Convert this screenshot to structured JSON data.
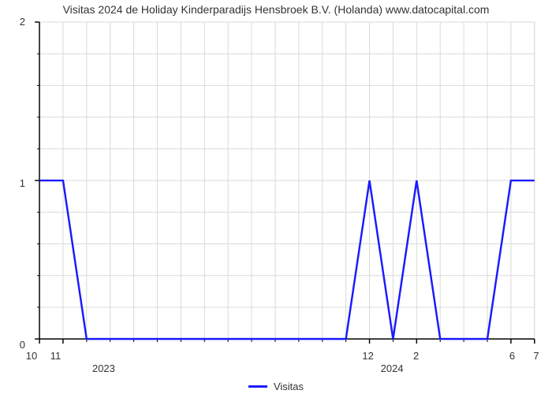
{
  "chart": {
    "type": "line",
    "title": "Visitas 2024 de Holiday Kinderparadijs Hensbroek B.V. (Holanda) www.datocapital.com",
    "title_fontsize": 14,
    "background_color": "#ffffff",
    "plot_bg": "#ffffff",
    "grid_color": "#d9d9d9",
    "axis_color": "#000000",
    "line_color": "#1a1aff",
    "line_width": 2.5,
    "y": {
      "min": 0,
      "max": 2,
      "major_ticks": [
        0,
        1,
        2
      ],
      "minor_per_major": 5
    },
    "x": {
      "n_months": 22,
      "major_ticks": [
        {
          "i": 0,
          "label": "10"
        },
        {
          "i": 1,
          "label": "11"
        },
        {
          "i": 14,
          "label": "12"
        },
        {
          "i": 16,
          "label": "2"
        },
        {
          "i": 20,
          "label": "6"
        },
        {
          "i": 21,
          "label": "7"
        }
      ],
      "year_labels": [
        {
          "i": 3,
          "label": "2023"
        },
        {
          "i": 15,
          "label": "2024"
        }
      ]
    },
    "series": {
      "name": "Visitas",
      "values": [
        1,
        1,
        0,
        0,
        0,
        0,
        0,
        0,
        0,
        0,
        0,
        0,
        0,
        0,
        1,
        0,
        1,
        0,
        0,
        0,
        1,
        1
      ]
    },
    "legend": {
      "label": "Visitas"
    }
  }
}
